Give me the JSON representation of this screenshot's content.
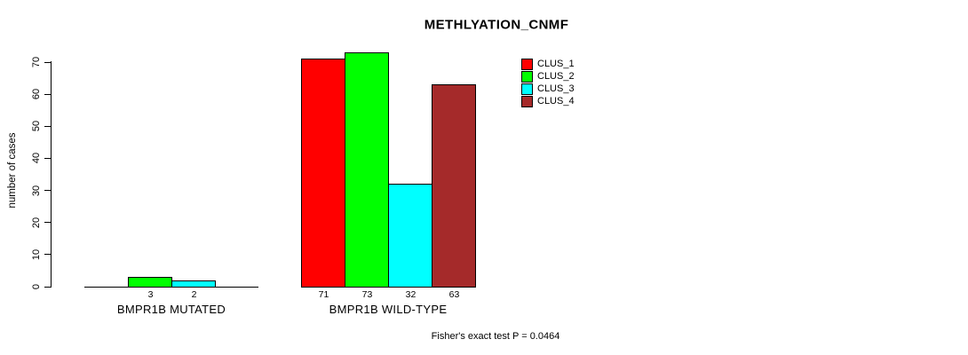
{
  "chart_data": {
    "type": "bar",
    "title": "METHLYATION_CNMF",
    "ylabel": "number of cases",
    "xlabel": "",
    "ylim": [
      0,
      70
    ],
    "yticks": [
      0,
      10,
      20,
      30,
      40,
      50,
      60,
      70
    ],
    "grid": false,
    "legend_position": "top-right",
    "legend": [
      {
        "name": "CLUS_1",
        "color": "#FF0000"
      },
      {
        "name": "CLUS_2",
        "color": "#00FF00"
      },
      {
        "name": "CLUS_3",
        "color": "#00FFFF"
      },
      {
        "name": "CLUS_4",
        "color": "#A52A2A"
      }
    ],
    "groups": [
      {
        "category": "BMPR1B MUTATED",
        "slots": 4,
        "bars": [
          {
            "series": "CLUS_2",
            "value": 3,
            "label": "3",
            "color": "#00FF00",
            "slot": 1
          },
          {
            "series": "CLUS_3",
            "value": 2,
            "label": "2",
            "color": "#00FFFF",
            "slot": 2
          }
        ]
      },
      {
        "category": "BMPR1B WILD-TYPE",
        "slots": 4,
        "bars": [
          {
            "series": "CLUS_1",
            "value": 71,
            "label": "71",
            "color": "#FF0000",
            "slot": 0
          },
          {
            "series": "CLUS_2",
            "value": 73,
            "label": "73",
            "color": "#00FF00",
            "slot": 1
          },
          {
            "series": "CLUS_3",
            "value": 32,
            "label": "32",
            "color": "#00FFFF",
            "slot": 2
          },
          {
            "series": "CLUS_4",
            "value": 63,
            "label": "63",
            "color": "#A52A2A",
            "slot": 3
          }
        ]
      }
    ],
    "annotation": "Fisher's exact test P = 0.0464"
  }
}
